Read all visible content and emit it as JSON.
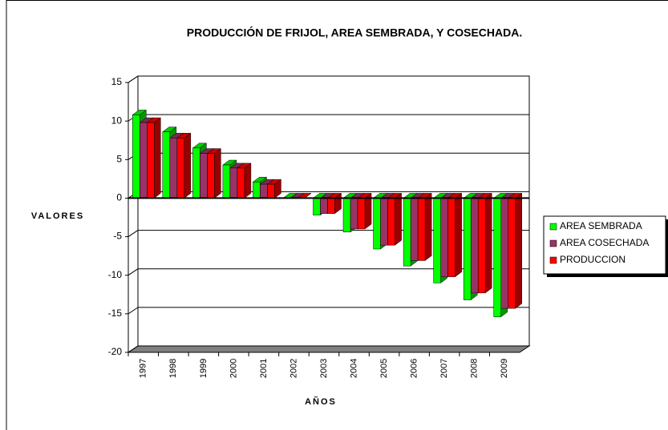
{
  "chart_data": {
    "type": "bar3d",
    "title": "PRODUCCIÓN DE FRIJOL, AREA SEMBRADA, Y COSECHADA.",
    "y_label": "VALORES",
    "x_label": "AÑOS",
    "categories": [
      "1997",
      "1998",
      "1999",
      "2000",
      "2001",
      "2002",
      "2003",
      "2004",
      "2005",
      "2006",
      "2007",
      "2008",
      "2009"
    ],
    "series": [
      {
        "name": "AREA SEMBRADA",
        "color": "#00ff00",
        "values": [
          10.8,
          8.6,
          6.5,
          4.3,
          2.1,
          0,
          -2.2,
          -4.4,
          -6.6,
          -8.8,
          -11.0,
          -13.2,
          -15.4
        ]
      },
      {
        "name": "AREA COSECHADA",
        "color": "#993366",
        "values": [
          9.8,
          7.8,
          5.8,
          3.9,
          1.8,
          0,
          -2.0,
          -4.0,
          -6.1,
          -8.1,
          -10.2,
          -12.3,
          -14.3
        ]
      },
      {
        "name": "PRODUCCION",
        "color": "#ff0000",
        "values": [
          9.8,
          7.8,
          5.8,
          3.9,
          1.8,
          0,
          -2.0,
          -4.0,
          -6.1,
          -8.1,
          -10.2,
          -12.3,
          -14.3
        ]
      }
    ],
    "ylim": [
      -20,
      15
    ],
    "yticks": [
      -20,
      -15,
      -10,
      -5,
      0,
      5,
      10,
      15
    ],
    "grid": true,
    "legend": "right"
  }
}
